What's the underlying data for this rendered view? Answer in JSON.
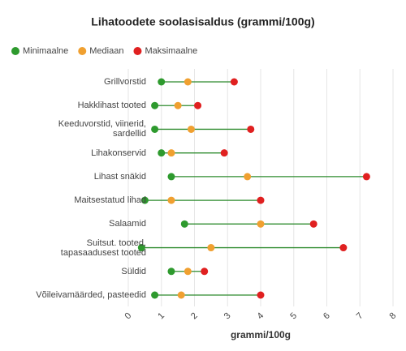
{
  "chart_data": {
    "type": "dumbbell",
    "title": "Lihatoodete soolasisaldus (grammi/100g)",
    "x_label": "grammi/100g",
    "categories": [
      "Grillvorstid",
      "Hakklihast tooted",
      "Keeduvorstid, viinerid,\nsardellid",
      "Lihakonservid",
      "Lihast snäkid",
      "Maitsestatud lihad",
      "Salaamid",
      "Suitsut. tooted,\ntapasaadusest tooted",
      "Süldid",
      "Võileivamäärded, pasteedid"
    ],
    "series": [
      {
        "name": "Minimaalne",
        "color": "#2e9a2e",
        "values": [
          1.0,
          0.8,
          0.8,
          1.0,
          1.3,
          0.5,
          1.7,
          0.4,
          1.3,
          0.8
        ]
      },
      {
        "name": "Mediaan",
        "color": "#f0a030",
        "values": [
          1.8,
          1.5,
          1.9,
          1.3,
          3.6,
          1.3,
          4.0,
          2.5,
          1.8,
          1.6
        ]
      },
      {
        "name": "Maksimaalne",
        "color": "#e02020",
        "values": [
          3.2,
          2.1,
          3.7,
          2.9,
          7.2,
          4.0,
          5.6,
          6.5,
          2.3,
          4.0
        ]
      }
    ],
    "connector_color": "#2e8b2e",
    "xlim": [
      0,
      8
    ],
    "xticks": [
      0,
      1,
      2,
      3,
      4,
      5,
      6,
      7,
      8
    ],
    "grid": true
  }
}
